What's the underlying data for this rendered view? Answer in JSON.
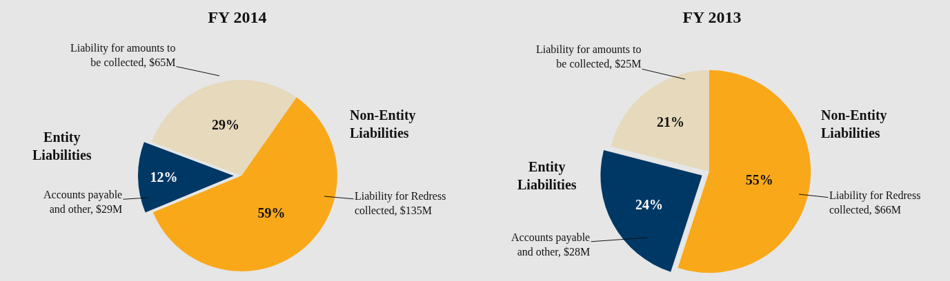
{
  "chart_data": [
    {
      "type": "pie",
      "title": "FY 2014",
      "categories": [
        "Liability for Redress\ncollected, $135M",
        "Accounts payable\nand other, $29M",
        "Liability for amounts to\nbe collected, $65M"
      ],
      "values": [
        59,
        12,
        29
      ],
      "value_labels": [
        "59%",
        "12%",
        "29%"
      ],
      "colors": [
        "#f9a81a",
        "#003865",
        "#e6d9bc"
      ],
      "annotations": [
        "Non-Entity\nLiabilities",
        "Entity\nLiabilities"
      ],
      "legend": false
    },
    {
      "type": "pie",
      "title": "FY 2013",
      "categories": [
        "Liability for Redress\ncollected, $66M",
        "Accounts payable\nand other, $28M",
        "Liability for amounts to\nbe collected, $25M"
      ],
      "values": [
        55,
        24,
        21
      ],
      "value_labels": [
        "55%",
        "24%",
        "21%"
      ],
      "colors": [
        "#f9a81a",
        "#003865",
        "#e6d9bc"
      ],
      "annotations": [
        "Non-Entity\nLiabilities",
        "Entity\nLiabilities"
      ],
      "legend": false
    }
  ]
}
